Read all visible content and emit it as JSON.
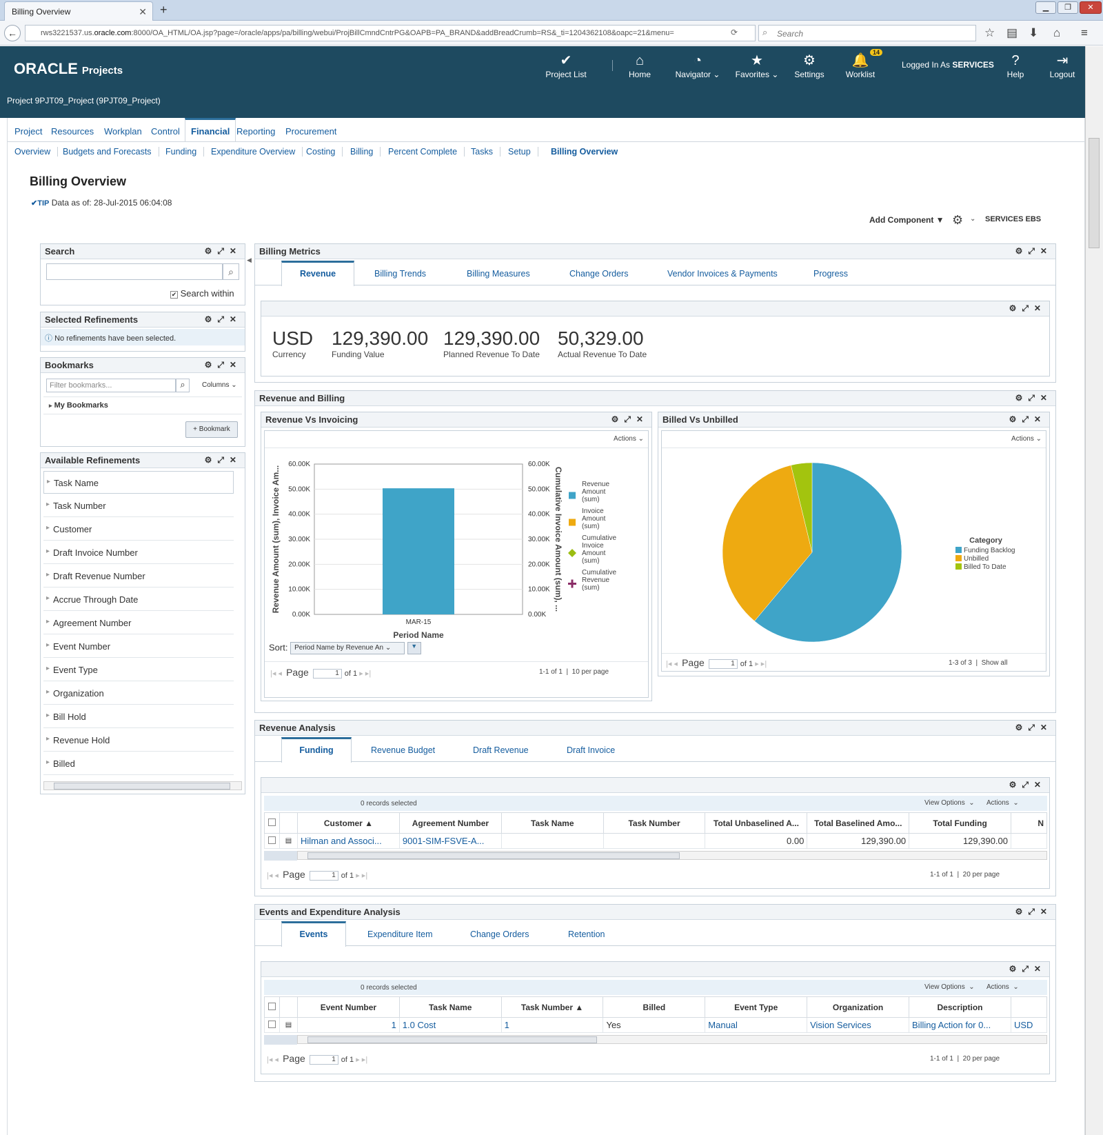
{
  "browser": {
    "tab_title": "Billing Overview",
    "url_prefix": "rws3221537.us.",
    "url_domain": "oracle.com",
    "url_rest": ":8000/OA_HTML/OA.jsp?page=/oracle/apps/pa/billing/webui/ProjBillCmndCntrPG&OAPB=PA_BRAND&addBreadCrumb=RS&_ti=1204362108&oapc=21&menu=",
    "search_placeholder": "Search"
  },
  "header": {
    "logo": "ORACLE",
    "product": "Projects",
    "project_name": "Project 9PJT09_Project (9PJT09_Project)",
    "nav": [
      {
        "label": "Project List",
        "icon": "✔"
      },
      {
        "label": "Home",
        "icon": "⌂"
      },
      {
        "label": "Navigator",
        "icon": "◔"
      },
      {
        "label": "Favorites",
        "icon": "★"
      },
      {
        "label": "Settings",
        "icon": "⚙"
      },
      {
        "label": "Worklist",
        "icon": "🔔"
      },
      {
        "label": "Help",
        "icon": "?"
      },
      {
        "label": "Logout",
        "icon": "⇥"
      }
    ],
    "worklist_count": "14",
    "logged_in_prefix": "Logged In As",
    "logged_in_user": "SERVICES"
  },
  "tabs_l1": [
    "Project",
    "Resources",
    "Workplan",
    "Control",
    "Financial",
    "Reporting",
    "Procurement"
  ],
  "tabs_l2": [
    "Overview",
    "Budgets and Forecasts",
    "Funding",
    "Expenditure Overview",
    "Costing",
    "Billing",
    "Percent Complete",
    "Tasks",
    "Setup",
    "Billing Overview"
  ],
  "page": {
    "title": "Billing Overview",
    "tip_label": "TIP",
    "tip_text": "Data as of: 28-Jul-2015 06:04:08",
    "add_component": "Add Component ▼",
    "user_menu": "SERVICES EBS"
  },
  "search_panel": {
    "title": "Search",
    "checkbox_label": "Search within"
  },
  "selected_refinements": {
    "title": "Selected Refinements",
    "message": "No refinements have been selected."
  },
  "bookmarks": {
    "title": "Bookmarks",
    "filter_placeholder": "Filter bookmarks...",
    "columns": "Columns",
    "my_bookmarks": "My Bookmarks",
    "add_button": "+ Bookmark"
  },
  "available_refinements": {
    "title": "Available Refinements",
    "items": [
      "Task Name",
      "Task Number",
      "Customer",
      "Draft Invoice Number",
      "Draft Revenue Number",
      "Accrue Through Date",
      "Agreement Number",
      "Event Number",
      "Event Type",
      "Organization",
      "Bill Hold",
      "Revenue Hold",
      "Billed"
    ]
  },
  "billing_metrics": {
    "title": "Billing Metrics",
    "tabs": [
      "Revenue",
      "Billing Trends",
      "Billing Measures",
      "Change Orders",
      "Vendor Invoices & Payments",
      "Progress"
    ],
    "metrics": [
      {
        "value": "USD",
        "label": "Currency"
      },
      {
        "value": "129,390.00",
        "label": "Funding Value"
      },
      {
        "value": "129,390.00",
        "label": "Planned Revenue To Date"
      },
      {
        "value": "50,329.00",
        "label": "Actual Revenue To Date"
      }
    ]
  },
  "revenue_billing": {
    "title": "Revenue and Billing"
  },
  "rev_vs_inv": {
    "title": "Revenue Vs Invoicing",
    "actions": "Actions",
    "sort_label": "Sort:",
    "sort_value": "Period Name by Revenue An",
    "page_label": "Page",
    "page_value": "1",
    "page_of": "of 1",
    "range": "1-1 of 1",
    "per_page": "10 per page"
  },
  "billed_vs_unbilled": {
    "title": "Billed Vs Unbilled",
    "actions": "Actions",
    "page_label": "Page",
    "page_value": "1",
    "page_of": "of 1",
    "range": "1-3 of 3",
    "show_all": "Show all"
  },
  "chart_data": [
    {
      "type": "bar",
      "title": "Revenue Vs Invoicing",
      "categories": [
        "MAR-15"
      ],
      "xlabel": "Period Name",
      "ylabel": "Revenue Amount (sum), Invoice Am...",
      "y2label": "Cumulative Invoice Amount (sum), ...",
      "ylim": [
        0,
        60000
      ],
      "yticks": [
        "0.00K",
        "10.00K",
        "20.00K",
        "30.00K",
        "40.00K",
        "50.00K",
        "60.00K"
      ],
      "series": [
        {
          "name": "Revenue Amount (sum)",
          "values": [
            50329
          ],
          "color": "#3fa4c8"
        },
        {
          "name": "Invoice Amount (sum)",
          "values": [
            0
          ],
          "color": "#eeaa11"
        },
        {
          "name": "Cumulative Invoice Amount (sum)",
          "values": [
            0
          ],
          "color": "#9bbd11"
        },
        {
          "name": "Cumulative Revenue (sum)",
          "values": [
            0
          ],
          "color": "#8a2c66"
        }
      ],
      "legend": "right",
      "grid": true
    },
    {
      "type": "pie",
      "title": "Billed Vs Unbilled",
      "legend_title": "Category",
      "slices": [
        {
          "label": "Funding Backlog",
          "value": 79061,
          "color": "#3fa4c8"
        },
        {
          "label": "Unbilled",
          "value": 45430,
          "color": "#eeaa11"
        },
        {
          "label": "Billed To Date",
          "value": 4899,
          "color": "#a3c40e"
        }
      ],
      "legend": "right"
    }
  ],
  "revenue_analysis": {
    "title": "Revenue Analysis",
    "tabs": [
      "Funding",
      "Revenue Budget",
      "Draft Revenue",
      "Draft Invoice"
    ],
    "records_selected": "0 records selected",
    "view_options": "View Options",
    "actions": "Actions",
    "columns": [
      "Customer ▲",
      "Agreement Number",
      "Task Name",
      "Task Number",
      "Total Unbaselined A...",
      "Total Baselined Amo...",
      "Total Funding",
      "N"
    ],
    "rows": [
      [
        "Hilman and Associ...",
        "9001-SIM-FSVE-A...",
        "",
        "",
        "0.00",
        "129,390.00",
        "129,390.00",
        ""
      ]
    ],
    "page_label": "Page",
    "page_value": "1",
    "page_of": "of 1",
    "range": "1-1 of 1",
    "per_page": "20 per page"
  },
  "events_analysis": {
    "title": "Events and Expenditure Analysis",
    "tabs": [
      "Events",
      "Expenditure Item",
      "Change Orders",
      "Retention"
    ],
    "records_selected": "0 records selected",
    "view_options": "View Options",
    "actions": "Actions",
    "columns": [
      "Event Number",
      "Task Name",
      "Task Number ▲",
      "Billed",
      "Event Type",
      "Organization",
      "Description",
      ""
    ],
    "rows": [
      [
        "1",
        "1.0 Cost",
        "1",
        "Yes",
        "Manual",
        "Vision Services",
        "Billing Action for 0...",
        "USD"
      ]
    ],
    "page_label": "Page",
    "page_value": "1",
    "page_of": "of 1",
    "range": "1-1 of 1",
    "per_page": "20 per page"
  }
}
